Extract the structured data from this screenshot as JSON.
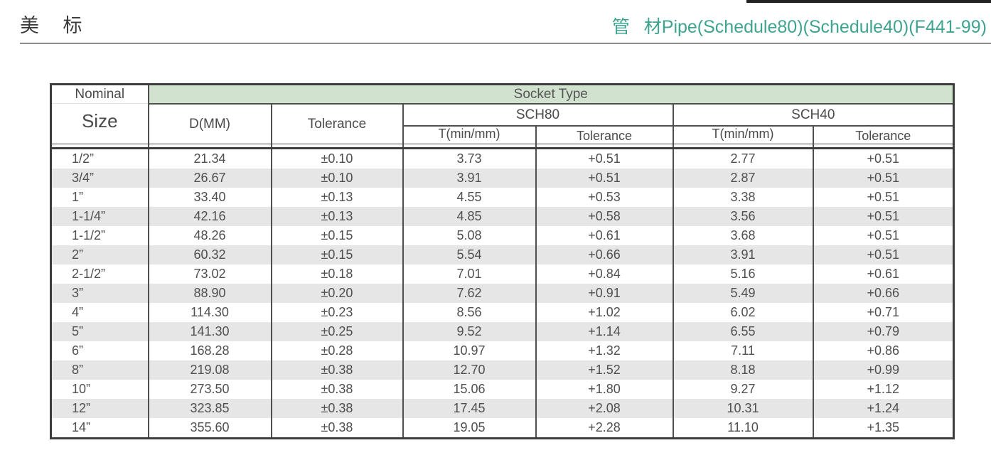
{
  "page": {
    "title_left": "美 标",
    "title_right": "管 材Pipe(Schedule80)(Schedule40)(F441-99)"
  },
  "colors": {
    "accent_teal": "#3fa48f",
    "band_green": "#d1e3ce",
    "stripe_gray": "#e6e6e6"
  },
  "table": {
    "header": {
      "nominal_line1": "Nominal",
      "nominal_line2": "Size",
      "socket_type": "Socket Type",
      "d_mm": "D(MM)",
      "tolerance": "Tolerance",
      "sch80": "SCH80",
      "sch40": "SCH40",
      "sch80_t": "T(min/mm)",
      "sch80_tolerance": "Tolerance",
      "sch40_t": "T(min/mm)",
      "sch40_tolerance": "Tolerance"
    },
    "columns_order": [
      "size",
      "d",
      "d_tol",
      "sch80_t",
      "sch80_tol",
      "sch40_t",
      "sch40_tol"
    ],
    "rows": [
      {
        "size": "1/2”",
        "d": "21.34",
        "d_tol": "±0.10",
        "sch80_t": "3.73",
        "sch80_tol": "+0.51",
        "sch40_t": "2.77",
        "sch40_tol": "+0.51"
      },
      {
        "size": "3/4”",
        "d": "26.67",
        "d_tol": "±0.10",
        "sch80_t": "3.91",
        "sch80_tol": "+0.51",
        "sch40_t": "2.87",
        "sch40_tol": "+0.51"
      },
      {
        "size": "1”",
        "d": "33.40",
        "d_tol": "±0.13",
        "sch80_t": "4.55",
        "sch80_tol": "+0.53",
        "sch40_t": "3.38",
        "sch40_tol": "+0.51"
      },
      {
        "size": "1-1/4”",
        "d": "42.16",
        "d_tol": "±0.13",
        "sch80_t": "4.85",
        "sch80_tol": "+0.58",
        "sch40_t": "3.56",
        "sch40_tol": "+0.51"
      },
      {
        "size": "1-1/2”",
        "d": "48.26",
        "d_tol": "±0.15",
        "sch80_t": "5.08",
        "sch80_tol": "+0.61",
        "sch40_t": "3.68",
        "sch40_tol": "+0.51"
      },
      {
        "size": "2”",
        "d": "60.32",
        "d_tol": "±0.15",
        "sch80_t": "5.54",
        "sch80_tol": "+0.66",
        "sch40_t": "3.91",
        "sch40_tol": "+0.51"
      },
      {
        "size": "2-1/2”",
        "d": "73.02",
        "d_tol": "±0.18",
        "sch80_t": "7.01",
        "sch80_tol": "+0.84",
        "sch40_t": "5.16",
        "sch40_tol": "+0.61"
      },
      {
        "size": "3”",
        "d": "88.90",
        "d_tol": "±0.20",
        "sch80_t": "7.62",
        "sch80_tol": "+0.91",
        "sch40_t": "5.49",
        "sch40_tol": "+0.66"
      },
      {
        "size": "4”",
        "d": "114.30",
        "d_tol": "±0.23",
        "sch80_t": "8.56",
        "sch80_tol": "+1.02",
        "sch40_t": "6.02",
        "sch40_tol": "+0.71"
      },
      {
        "size": "5”",
        "d": "141.30",
        "d_tol": "±0.25",
        "sch80_t": "9.52",
        "sch80_tol": "+1.14",
        "sch40_t": "6.55",
        "sch40_tol": "+0.79"
      },
      {
        "size": "6”",
        "d": "168.28",
        "d_tol": "±0.28",
        "sch80_t": "10.97",
        "sch80_tol": "+1.32",
        "sch40_t": "7.11",
        "sch40_tol": "+0.86"
      },
      {
        "size": "8”",
        "d": "219.08",
        "d_tol": "±0.38",
        "sch80_t": "12.70",
        "sch80_tol": "+1.52",
        "sch40_t": "8.18",
        "sch40_tol": "+0.99"
      },
      {
        "size": "10”",
        "d": "273.50",
        "d_tol": "±0.38",
        "sch80_t": "15.06",
        "sch80_tol": "+1.80",
        "sch40_t": "9.27",
        "sch40_tol": "+1.12"
      },
      {
        "size": "12”",
        "d": "323.85",
        "d_tol": "±0.38",
        "sch80_t": "17.45",
        "sch80_tol": "+2.08",
        "sch40_t": "10.31",
        "sch40_tol": "+1.24"
      },
      {
        "size": "14”",
        "d": "355.60",
        "d_tol": "±0.38",
        "sch80_t": "19.05",
        "sch80_tol": "+2.28",
        "sch40_t": "11.10",
        "sch40_tol": "+1.35"
      }
    ]
  }
}
